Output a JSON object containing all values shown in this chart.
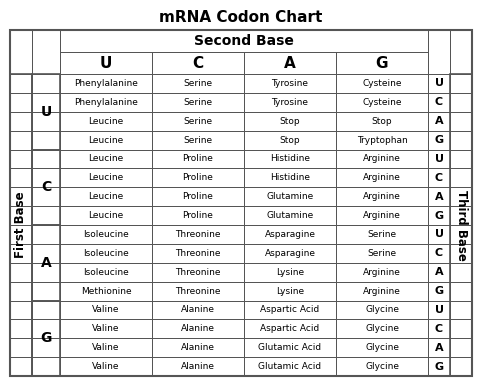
{
  "title": "mRNA Codon Chart",
  "title_color": "#000000",
  "second_base_label": "Second Base",
  "first_base_label": "First Base",
  "third_base_label": "Third Base",
  "col_headers": [
    "U",
    "C",
    "A",
    "G"
  ],
  "row_groups": [
    "U",
    "C",
    "A",
    "G"
  ],
  "third_base_labels": [
    "U",
    "C",
    "A",
    "G",
    "U",
    "C",
    "A",
    "G",
    "U",
    "C",
    "A",
    "G",
    "U",
    "C",
    "A",
    "G"
  ],
  "table_data": [
    [
      "Phenylalanine",
      "Serine",
      "Tyrosine",
      "Cysteine"
    ],
    [
      "Phenylalanine",
      "Serine",
      "Tyrosine",
      "Cysteine"
    ],
    [
      "Leucine",
      "Serine",
      "Stop",
      "Stop"
    ],
    [
      "Leucine",
      "Serine",
      "Stop",
      "Tryptophan"
    ],
    [
      "Leucine",
      "Proline",
      "Histidine",
      "Arginine"
    ],
    [
      "Leucine",
      "Proline",
      "Histidine",
      "Arginine"
    ],
    [
      "Leucine",
      "Proline",
      "Glutamine",
      "Arginine"
    ],
    [
      "Leucine",
      "Proline",
      "Glutamine",
      "Arginine"
    ],
    [
      "Isoleucine",
      "Threonine",
      "Asparagine",
      "Serine"
    ],
    [
      "Isoleucine",
      "Threonine",
      "Asparagine",
      "Serine"
    ],
    [
      "Isoleucine",
      "Threonine",
      "Lysine",
      "Arginine"
    ],
    [
      "Methionine",
      "Threonine",
      "Lysine",
      "Arginine"
    ],
    [
      "Valine",
      "Alanine",
      "Aspartic Acid",
      "Glycine"
    ],
    [
      "Valine",
      "Alanine",
      "Aspartic Acid",
      "Glycine"
    ],
    [
      "Valine",
      "Alanine",
      "Glutamic Acid",
      "Glycine"
    ],
    [
      "Valine",
      "Alanine",
      "Glutamic Acid",
      "Glycine"
    ]
  ],
  "bg_color": "#ffffff",
  "line_color": "#555555",
  "n_data_rows": 16,
  "n_data_cols": 4
}
